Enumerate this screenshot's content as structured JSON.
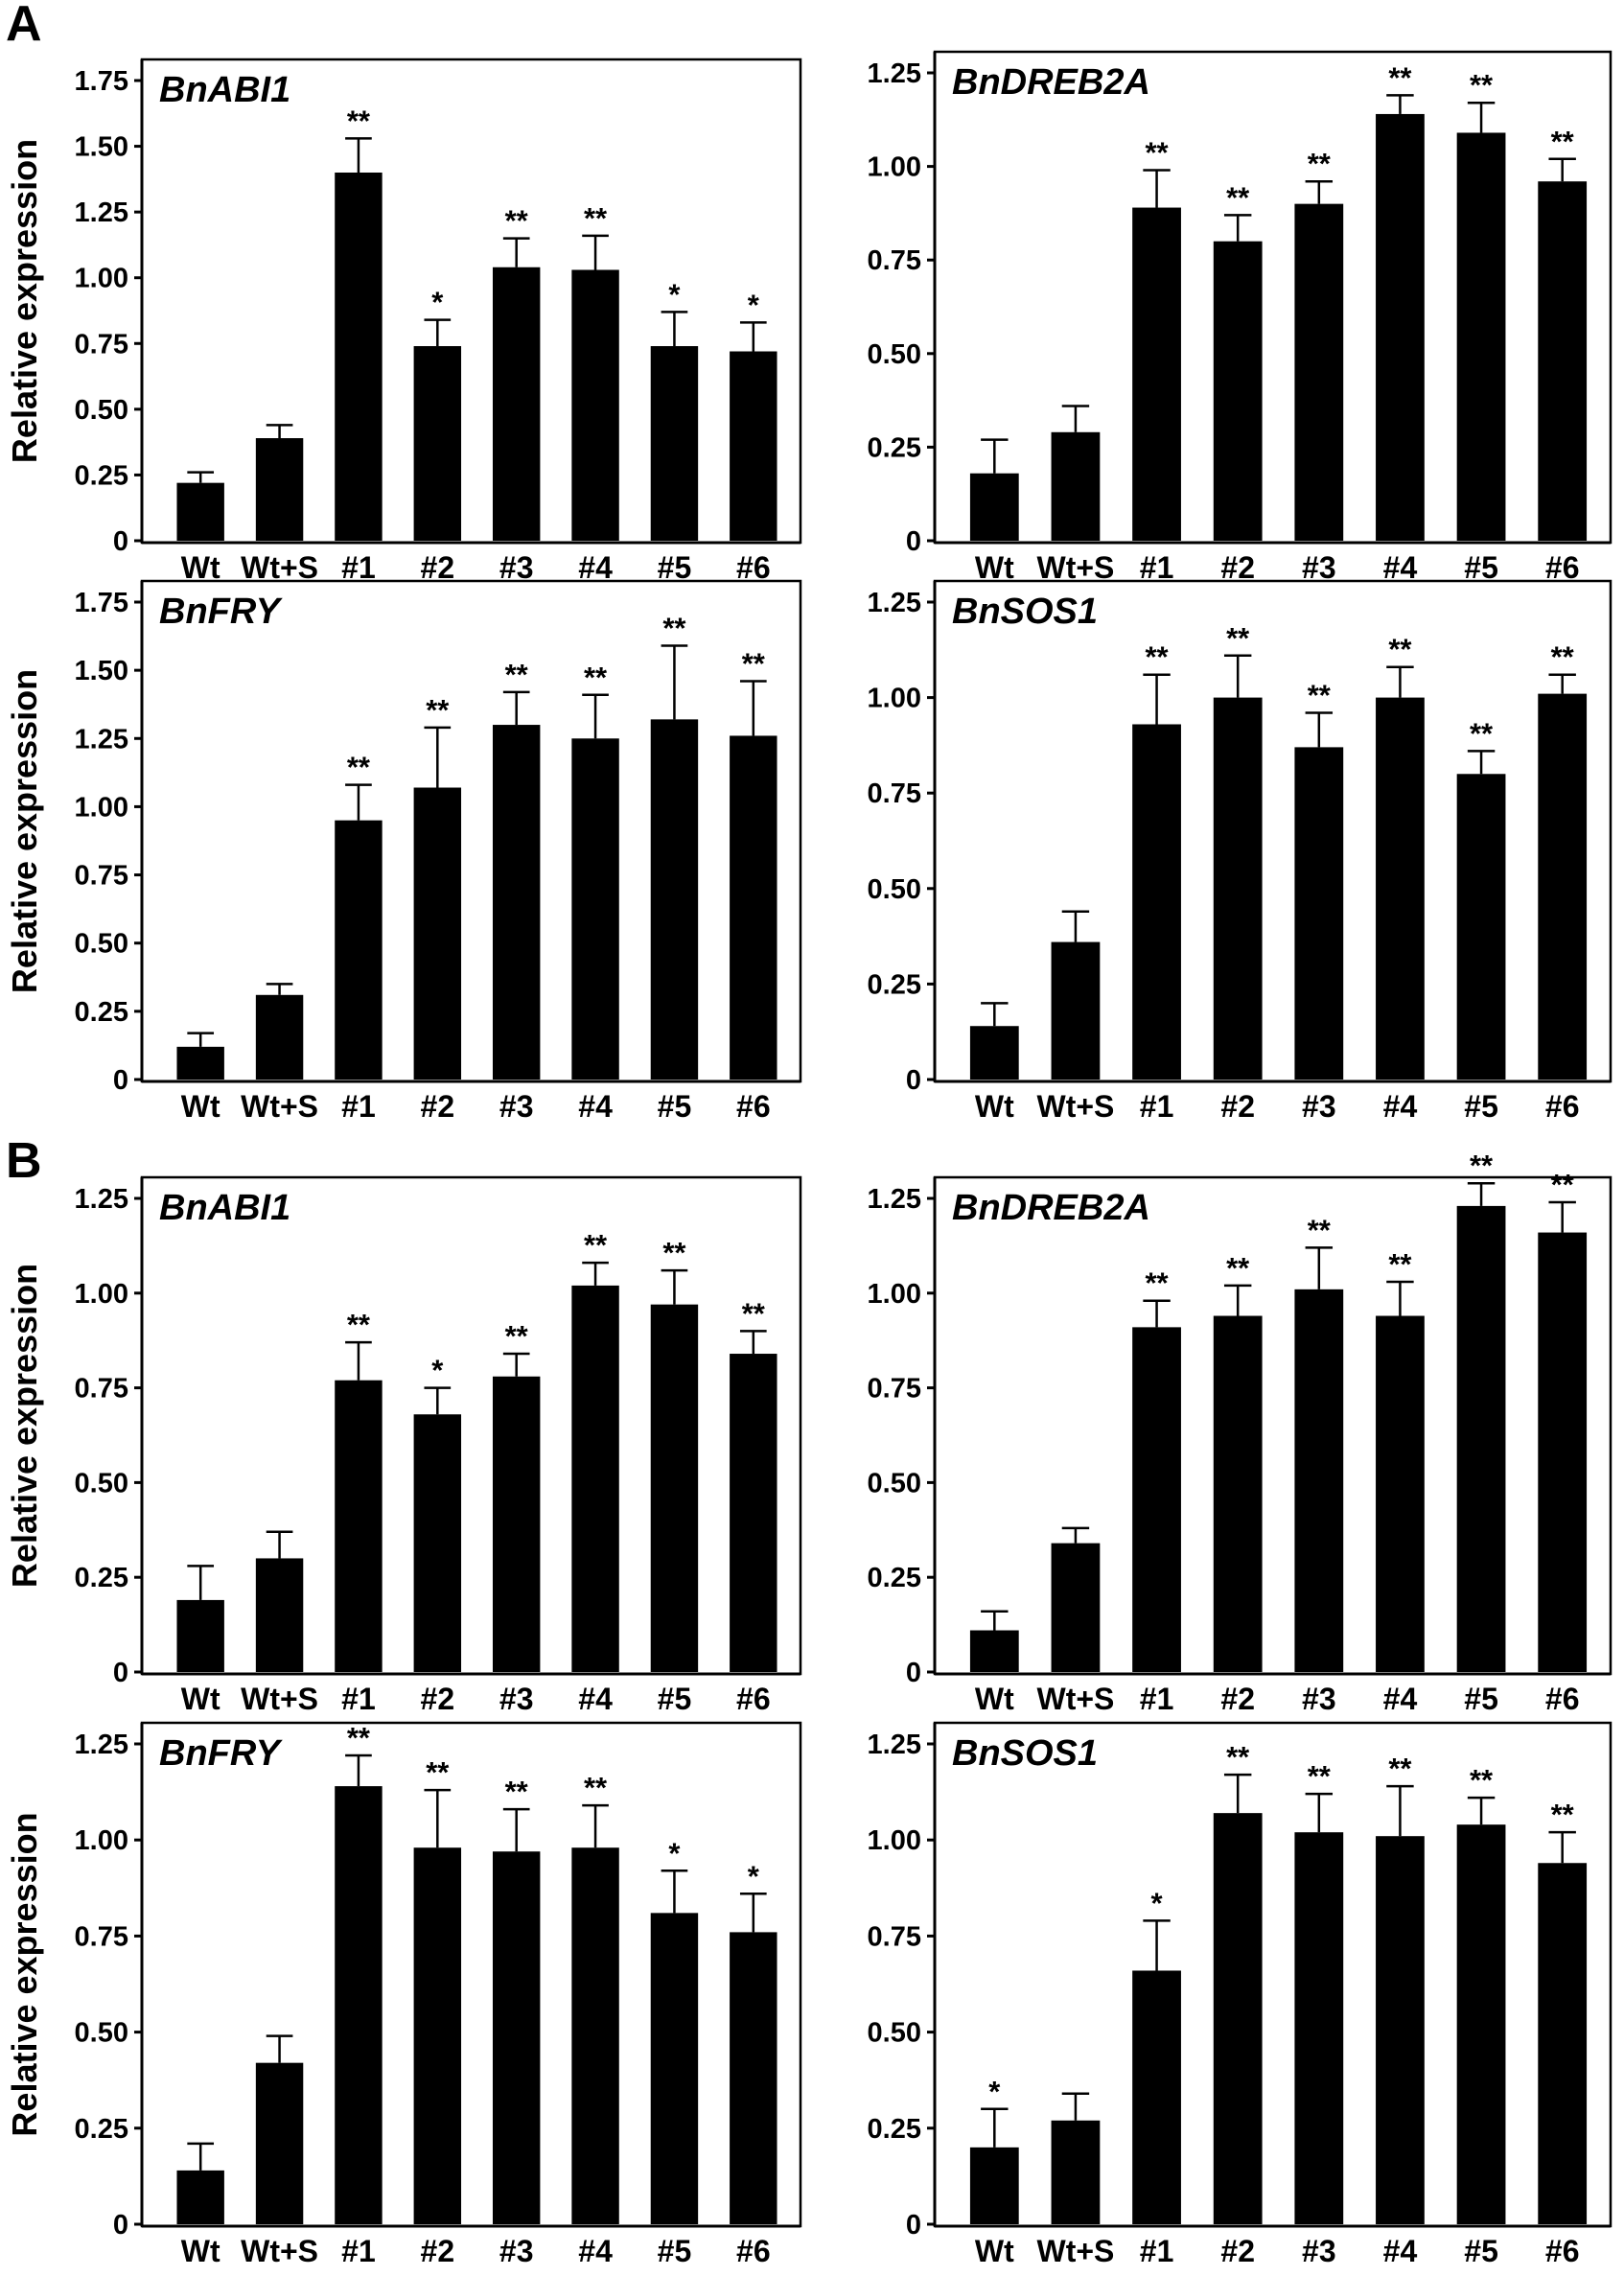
{
  "panel_letters": [
    "A",
    "B"
  ],
  "chart_data": [
    {
      "type": "bar",
      "panel": "A",
      "title": "BnABI1",
      "ylabel": "Relative expression",
      "categories": [
        "Wt",
        "Wt+S",
        "#1",
        "#2",
        "#3",
        "#4",
        "#5",
        "#6"
      ],
      "values": [
        0.22,
        0.39,
        1.4,
        0.74,
        1.04,
        1.03,
        0.74,
        0.72
      ],
      "errors": [
        0.04,
        0.05,
        0.13,
        0.1,
        0.11,
        0.13,
        0.13,
        0.11
      ],
      "significance": [
        "",
        "",
        "**",
        "*",
        "**",
        "**",
        "*",
        "*"
      ],
      "ylim": [
        0,
        1.75
      ],
      "yticks": [
        "0",
        "0.25",
        "0.50",
        "0.75",
        "1.00",
        "1.25",
        "1.50",
        "1.75"
      ]
    },
    {
      "type": "bar",
      "panel": "A",
      "title": "BnDREB2A",
      "ylabel": "",
      "categories": [
        "Wt",
        "Wt+S",
        "#1",
        "#2",
        "#3",
        "#4",
        "#5",
        "#6"
      ],
      "values": [
        0.18,
        0.29,
        0.89,
        0.8,
        0.9,
        1.14,
        1.09,
        0.96
      ],
      "errors": [
        0.09,
        0.07,
        0.1,
        0.07,
        0.06,
        0.05,
        0.08,
        0.06
      ],
      "significance": [
        "",
        "",
        "**",
        "**",
        "**",
        "**",
        "**",
        "**"
      ],
      "ylim": [
        0,
        1.25
      ],
      "yticks": [
        "0",
        "0.25",
        "0.50",
        "0.75",
        "1.00",
        "1.25"
      ]
    },
    {
      "type": "bar",
      "panel": "A",
      "title": "BnFRY",
      "ylabel": "Relative expression",
      "categories": [
        "Wt",
        "Wt+S",
        "#1",
        "#2",
        "#3",
        "#4",
        "#5",
        "#6"
      ],
      "values": [
        0.12,
        0.31,
        0.95,
        1.07,
        1.3,
        1.25,
        1.32,
        1.26
      ],
      "errors": [
        0.05,
        0.04,
        0.13,
        0.22,
        0.12,
        0.16,
        0.27,
        0.2
      ],
      "significance": [
        "",
        "",
        "**",
        "**",
        "**",
        "**",
        "**",
        "**"
      ],
      "ylim": [
        0,
        1.75
      ],
      "yticks": [
        "0",
        "0.25",
        "0.50",
        "0.75",
        "1.00",
        "1.25",
        "1.50",
        "1.75"
      ]
    },
    {
      "type": "bar",
      "panel": "A",
      "title": "BnSOS1",
      "ylabel": "",
      "categories": [
        "Wt",
        "Wt+S",
        "#1",
        "#2",
        "#3",
        "#4",
        "#5",
        "#6"
      ],
      "values": [
        0.14,
        0.36,
        0.93,
        1.0,
        0.87,
        1.0,
        0.8,
        1.01
      ],
      "errors": [
        0.06,
        0.08,
        0.13,
        0.11,
        0.09,
        0.08,
        0.06,
        0.05
      ],
      "significance": [
        "",
        "",
        "**",
        "**",
        "**",
        "**",
        "**",
        "**"
      ],
      "ylim": [
        0,
        1.25
      ],
      "yticks": [
        "0",
        "0.25",
        "0.50",
        "0.75",
        "1.00",
        "1.25"
      ]
    },
    {
      "type": "bar",
      "panel": "B",
      "title": "BnABI1",
      "ylabel": "Relative expression",
      "categories": [
        "Wt",
        "Wt+S",
        "#1",
        "#2",
        "#3",
        "#4",
        "#5",
        "#6"
      ],
      "values": [
        0.19,
        0.3,
        0.77,
        0.68,
        0.78,
        1.02,
        0.97,
        0.84
      ],
      "errors": [
        0.09,
        0.07,
        0.1,
        0.07,
        0.06,
        0.06,
        0.09,
        0.06
      ],
      "significance": [
        "",
        "",
        "**",
        "*",
        "**",
        "**",
        "**",
        "**"
      ],
      "ylim": [
        0,
        1.25
      ],
      "yticks": [
        "0",
        "0.25",
        "0.50",
        "0.75",
        "1.00",
        "1.25"
      ]
    },
    {
      "type": "bar",
      "panel": "B",
      "title": "BnDREB2A",
      "ylabel": "",
      "categories": [
        "Wt",
        "Wt+S",
        "#1",
        "#2",
        "#3",
        "#4",
        "#5",
        "#6"
      ],
      "values": [
        0.11,
        0.34,
        0.91,
        0.94,
        1.01,
        0.94,
        1.23,
        1.16
      ],
      "errors": [
        0.05,
        0.04,
        0.07,
        0.08,
        0.11,
        0.09,
        0.06,
        0.08
      ],
      "significance": [
        "",
        "",
        "**",
        "**",
        "**",
        "**",
        "**",
        "**"
      ],
      "ylim": [
        0,
        1.25
      ],
      "yticks": [
        "0",
        "0.25",
        "0.50",
        "0.75",
        "1.00",
        "1.25"
      ]
    },
    {
      "type": "bar",
      "panel": "B",
      "title": "BnFRY",
      "ylabel": "Relative expression",
      "categories": [
        "Wt",
        "Wt+S",
        "#1",
        "#2",
        "#3",
        "#4",
        "#5",
        "#6"
      ],
      "values": [
        0.14,
        0.42,
        1.14,
        0.98,
        0.97,
        0.98,
        0.81,
        0.76
      ],
      "errors": [
        0.07,
        0.07,
        0.08,
        0.15,
        0.11,
        0.11,
        0.11,
        0.1
      ],
      "significance": [
        "",
        "",
        "**",
        "**",
        "**",
        "**",
        "*",
        "*"
      ],
      "ylim": [
        0,
        1.25
      ],
      "yticks": [
        "0",
        "0.25",
        "0.50",
        "0.75",
        "1.00",
        "1.25"
      ]
    },
    {
      "type": "bar",
      "panel": "B",
      "title": "BnSOS1",
      "ylabel": "",
      "categories": [
        "Wt",
        "Wt+S",
        "#1",
        "#2",
        "#3",
        "#4",
        "#5",
        "#6"
      ],
      "values": [
        0.2,
        0.27,
        0.66,
        1.07,
        1.02,
        1.01,
        1.04,
        0.94
      ],
      "errors": [
        0.1,
        0.07,
        0.13,
        0.1,
        0.1,
        0.13,
        0.07,
        0.08
      ],
      "significance": [
        "*",
        "",
        "*",
        "**",
        "**",
        "**",
        "**",
        "**"
      ],
      "ylim": [
        0,
        1.25
      ],
      "yticks": [
        "0",
        "0.25",
        "0.50",
        "0.75",
        "1.00",
        "1.25"
      ]
    }
  ]
}
